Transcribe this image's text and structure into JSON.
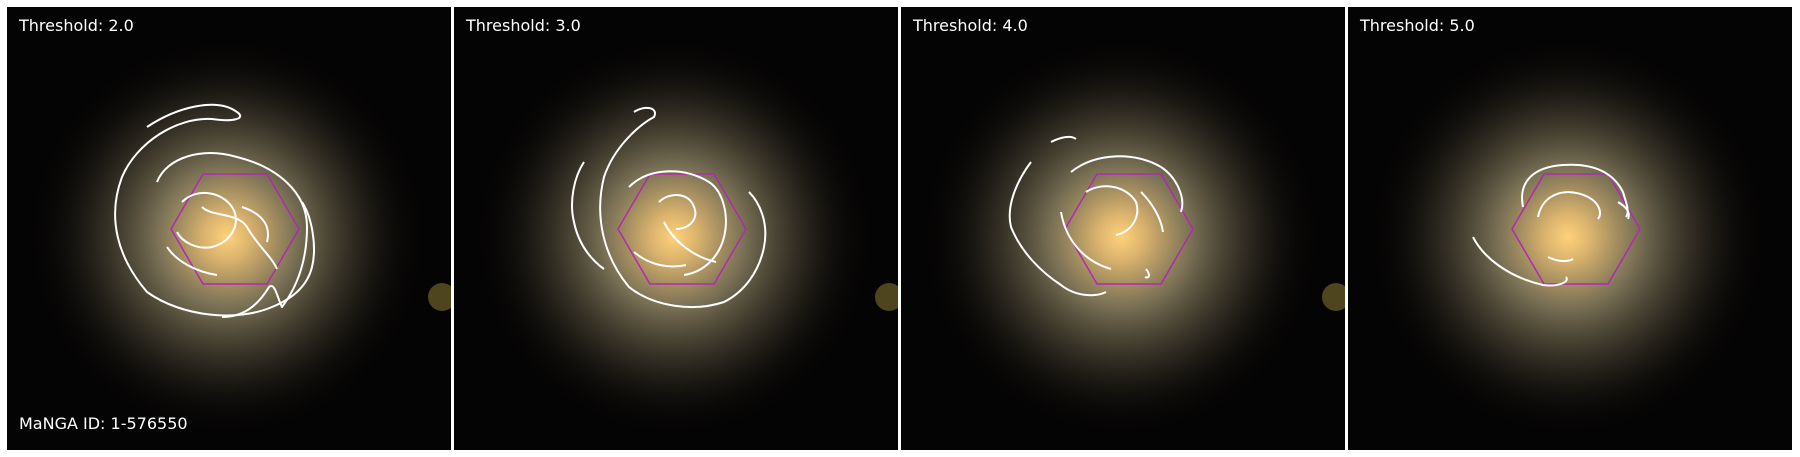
{
  "figure": {
    "panels": [
      {
        "threshold_label": "Threshold: 2.0"
      },
      {
        "threshold_label": "Threshold: 3.0"
      },
      {
        "threshold_label": "Threshold: 4.0"
      },
      {
        "threshold_label": "Threshold: 5.0"
      }
    ],
    "id_label": "MaNGA ID: 1-576550"
  },
  "colors": {
    "background": "#050404",
    "contour": "#ffffff",
    "ifu_hexagon": "#b02ab0",
    "galaxy_core": "#ffd27a",
    "galaxy_halo": "#8f8464"
  }
}
